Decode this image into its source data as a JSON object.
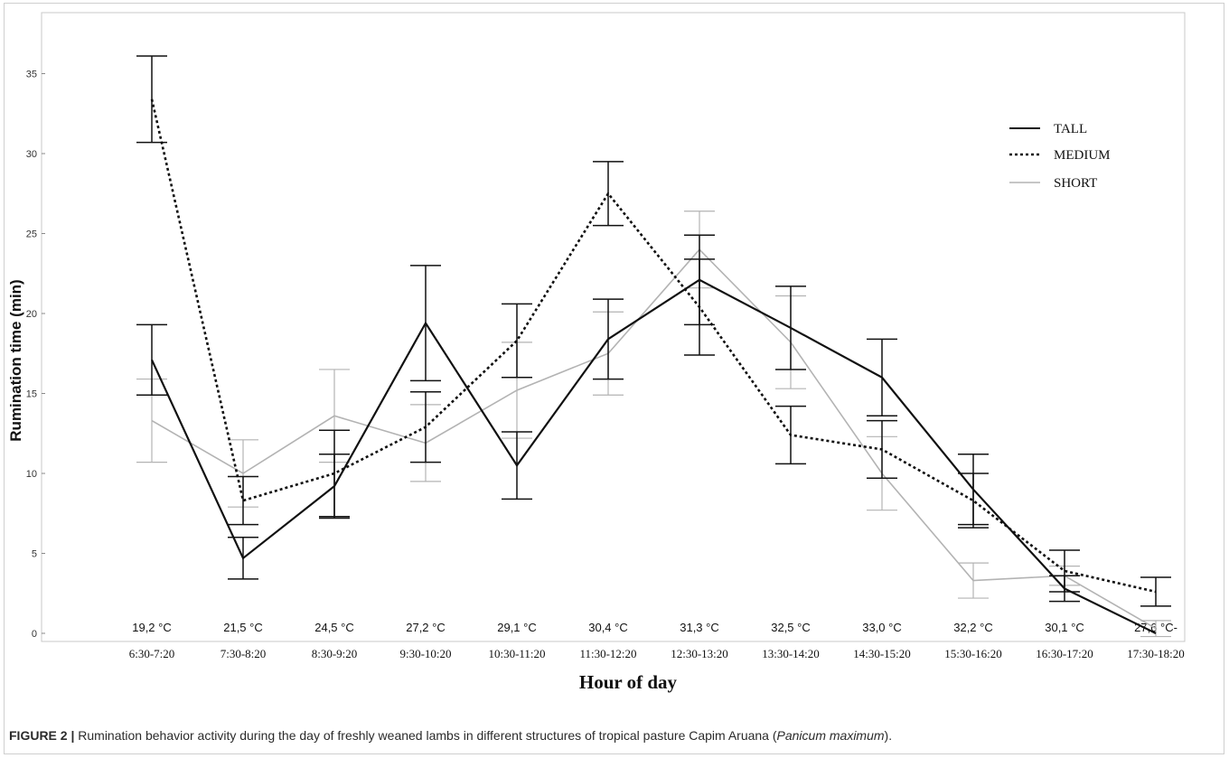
{
  "caption": {
    "label": "FIGURE 2 |",
    "text_before": " Rumination behavior activity during the day of freshly weaned lambs in different structures of tropical pasture Capim Aruana (",
    "italic": "Panicum maximum",
    "text_after": ")."
  },
  "chart_data": {
    "type": "line",
    "xlabel": "Hour of day",
    "ylabel": "Rumination time (min)",
    "categories": [
      "6:30-7:20",
      "7:30-8:20",
      "8:30-9:20",
      "9:30-10:20",
      "10:30-11:20",
      "11:30-12:20",
      "12:30-13:20",
      "13:30-14:20",
      "14:30-15:20",
      "15:30-16:20",
      "16:30-17:20",
      "17:30-18:20"
    ],
    "temperatures": [
      "19,2 °C",
      "21,5 °C",
      "24,5 °C",
      "27,2 °C",
      "29,1 °C",
      "30,4 °C",
      "31,3 °C",
      "32,5 °C",
      "33,0 °C",
      "32,2 °C",
      "30,1 °C",
      "27,6 °C-"
    ],
    "ylim": [
      0,
      37
    ],
    "yticks": [
      0,
      5,
      10,
      15,
      20,
      25,
      30,
      35
    ],
    "legend_position": "top-right",
    "series": [
      {
        "name": "TALL",
        "style": "solid",
        "color": "#111111",
        "values": [
          17.1,
          4.7,
          9.2,
          19.4,
          10.5,
          18.4,
          22.1,
          19.1,
          16.0,
          9.0,
          2.8,
          0.0
        ],
        "err": [
          2.2,
          1.3,
          2.0,
          3.6,
          2.1,
          2.5,
          2.8,
          2.6,
          2.4,
          2.2,
          0.8,
          0.0
        ]
      },
      {
        "name": "MEDIUM",
        "style": "dotted",
        "color": "#111111",
        "values": [
          33.4,
          8.3,
          10.0,
          12.9,
          18.3,
          27.5,
          20.4,
          12.4,
          11.5,
          8.3,
          3.9,
          2.6
        ],
        "err": [
          2.7,
          1.5,
          2.7,
          2.2,
          2.3,
          2.0,
          3.0,
          1.8,
          1.8,
          1.7,
          1.3,
          0.9
        ]
      },
      {
        "name": "SHORT",
        "style": "solid",
        "color": "#b3b3b3",
        "values": [
          13.3,
          10.0,
          13.6,
          11.9,
          15.2,
          17.5,
          24.0,
          18.2,
          10.0,
          3.3,
          3.6,
          0.3
        ],
        "err": [
          2.6,
          2.1,
          2.9,
          2.4,
          3.0,
          2.6,
          2.4,
          2.9,
          2.3,
          1.1,
          0.6,
          0.5
        ]
      }
    ]
  }
}
